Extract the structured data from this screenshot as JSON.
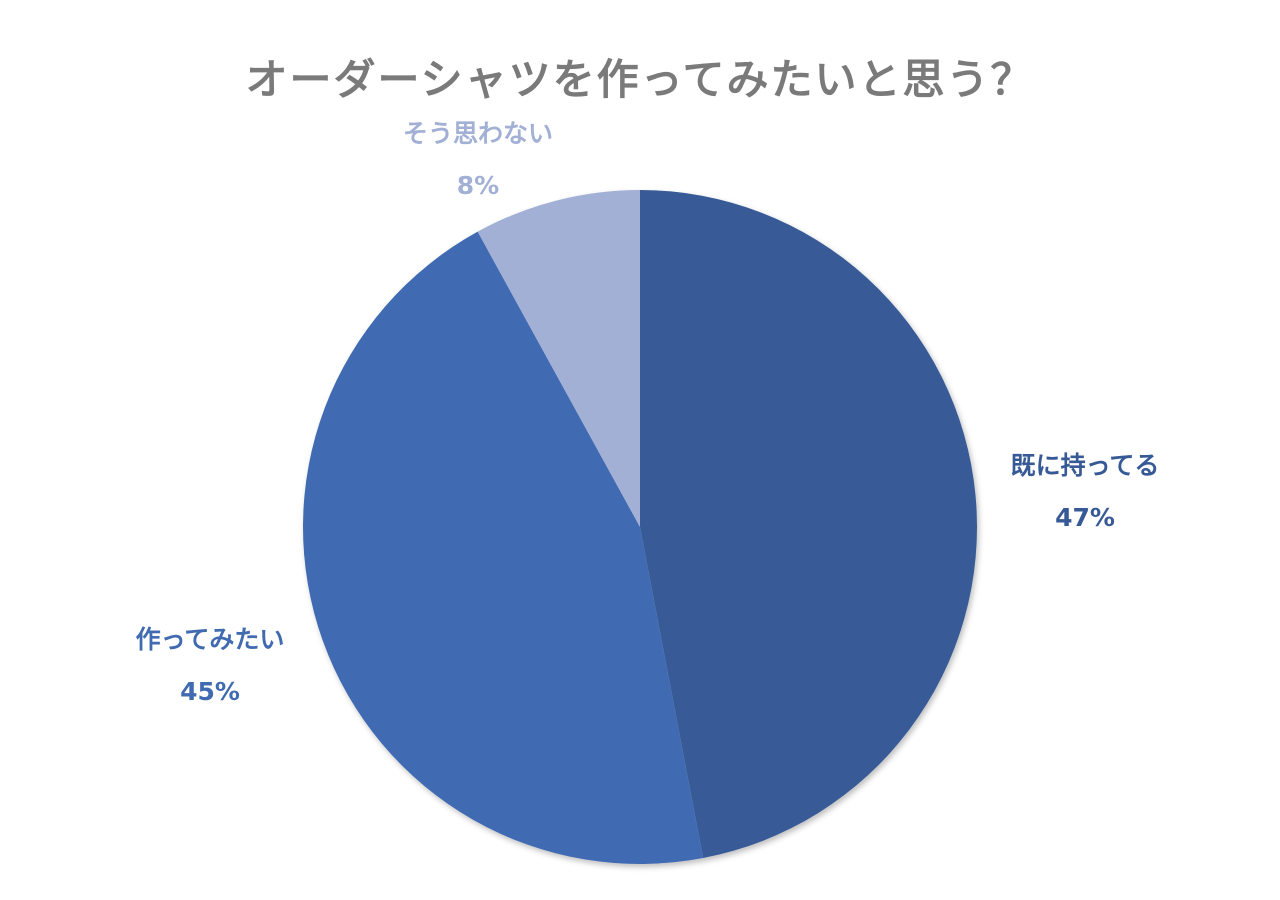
{
  "chart_data": {
    "type": "pie",
    "title": "オーダーシャツを作ってみたいと思う？",
    "slices": [
      {
        "label": "既に持ってる",
        "percent_label": "47%",
        "value": 47,
        "color": "#375a96",
        "label_color": "#375a96"
      },
      {
        "label": "作ってみたい",
        "percent_label": "45%",
        "value": 45,
        "color": "#416bb1",
        "label_color": "#416bb1"
      },
      {
        "label": "そう思わない",
        "percent_label": "8%",
        "value": 8,
        "color": "#a3b0d6",
        "label_color": "#a3b0d6"
      }
    ]
  }
}
